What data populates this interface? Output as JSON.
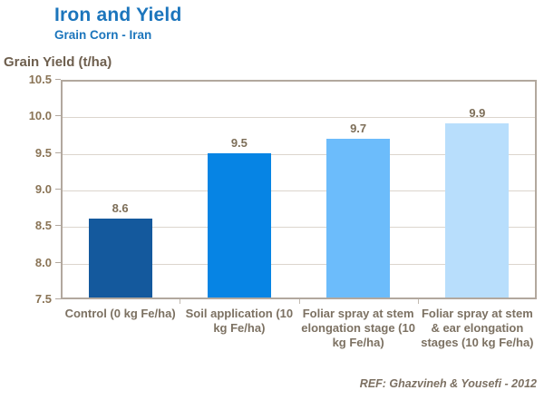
{
  "header": {
    "title": "Iron and Yield",
    "subtitle": "Grain Corn - Iran"
  },
  "footer": {
    "reference": "REF: Ghazvineh & Yousefi - 2012"
  },
  "colors": {
    "title_blue": "#1B75BC",
    "axis_text_brown": "#8A7456",
    "category_text": "#7C7162",
    "frame": "#B2A89E",
    "gridline": "#DCD5CD"
  },
  "chart_data": {
    "type": "bar",
    "title": "Iron and Yield",
    "subtitle": "Grain Corn - Iran",
    "xlabel": "",
    "ylabel": "Grain Yield (t/ha)",
    "categories": [
      "Control (0 kg Fe/ha)",
      "Soil application (10 kg Fe/ha)",
      "Foliar spray at stem elongation stage (10 kg Fe/ha)",
      "Foliar spray at stem & ear elongation stages (10 kg Fe/ha)"
    ],
    "values": [
      8.6,
      9.5,
      9.7,
      9.9
    ],
    "value_labels": [
      "8.6",
      "9.5",
      "9.7",
      "9.9"
    ],
    "bar_colors": [
      "#14599D",
      "#0684E4",
      "#6CBCFB",
      "#B8DEFC"
    ],
    "ylim": [
      7.5,
      10.5
    ],
    "ytick_step": 0.5,
    "grid": true,
    "legend": "none"
  }
}
